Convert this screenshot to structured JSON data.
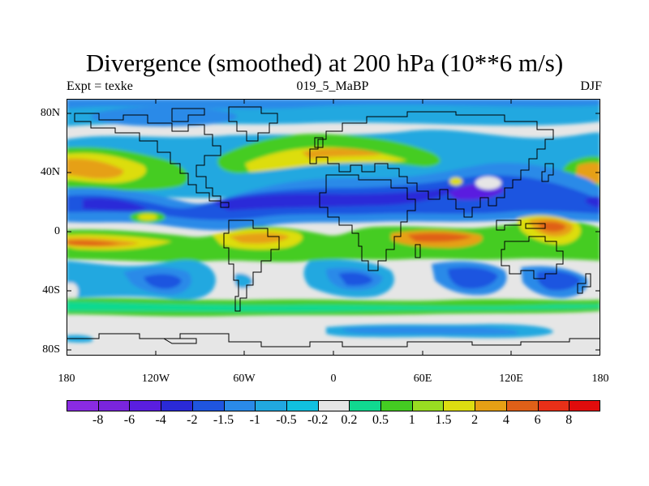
{
  "title": "Divergence (smoothed) at 200 hPa (10**6 m/s)",
  "subtitle_left": "Expt = texke",
  "subtitle_center": "019_5_MaBP",
  "subtitle_right": "DJF",
  "lat_ticks": [
    "80N",
    "40N",
    "0",
    "40S",
    "80S"
  ],
  "lon_ticks": [
    "180",
    "120W",
    "60W",
    "0",
    "60E",
    "120E",
    "180"
  ],
  "colorbar": {
    "labels": [
      "-8",
      "-6",
      "-4",
      "-2",
      "-1.5",
      "-1",
      "-0.5",
      "-0.2",
      "0.2",
      "0.5",
      "1",
      "1.5",
      "2",
      "4",
      "6",
      "8"
    ],
    "colors": [
      "#8a2be2",
      "#7a25dc",
      "#5a1ee0",
      "#2a2ad8",
      "#1f55e0",
      "#2a8ae8",
      "#21a8e0",
      "#11c0e0",
      "#e6e6e6",
      "#11d990",
      "#44cc22",
      "#99dd22",
      "#dddd11",
      "#e6a015",
      "#e06018",
      "#e83018",
      "#e00c0c"
    ]
  }
}
